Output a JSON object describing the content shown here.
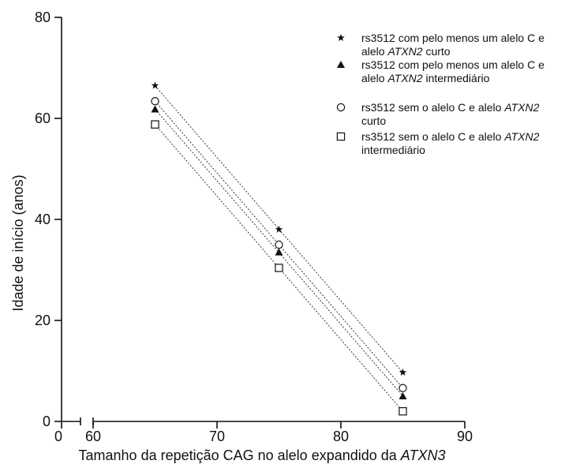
{
  "chart_data": {
    "type": "scatter",
    "xlabel": {
      "plain": "Tamanho da repetição CAG no alelo expandido da ",
      "italic": "ATXN3"
    },
    "ylabel": "Idade de início (anos)",
    "x_break": {
      "first_tick": "0",
      "resume_at": 60
    },
    "xlim": [
      60,
      90
    ],
    "ylim": [
      0,
      80
    ],
    "x_ticks": [
      60,
      70,
      80,
      90
    ],
    "y_ticks": [
      0,
      20,
      40,
      60,
      80
    ],
    "grid": false,
    "legend_position": "top-right",
    "fitted_lines": true,
    "series": [
      {
        "name": [
          [
            {
              "t": "rs3512 com pelo menos um alelo C e",
              "i": false
            }
          ],
          [
            {
              "t": "alelo ",
              "i": false
            },
            {
              "t": "ATXN2",
              "i": true
            },
            {
              "t": " curto",
              "i": false
            }
          ]
        ],
        "marker": "star",
        "x": [
          65,
          75,
          85
        ],
        "y": [
          66.5,
          38.0,
          9.7
        ]
      },
      {
        "name": [
          [
            {
              "t": "rs3512 com pelo menos um alelo C e",
              "i": false
            }
          ],
          [
            {
              "t": "alelo ",
              "i": false
            },
            {
              "t": "ATXN2",
              "i": true
            },
            {
              "t": " intermediário",
              "i": false
            }
          ]
        ],
        "marker": "triangle",
        "x": [
          65,
          75,
          85
        ],
        "y": [
          61.8,
          33.5,
          5.0
        ]
      },
      {
        "name": [
          [
            {
              "t": "rs3512 sem o alelo C e alelo ",
              "i": false
            },
            {
              "t": "ATXN2",
              "i": true
            }
          ],
          [
            {
              "t": "curto",
              "i": false
            }
          ]
        ],
        "marker": "circle",
        "x": [
          65,
          75,
          85
        ],
        "y": [
          63.4,
          35.0,
          6.6
        ]
      },
      {
        "name": [
          [
            {
              "t": "rs3512 sem o alelo C e alelo ",
              "i": false
            },
            {
              "t": "ATXN2",
              "i": true
            }
          ],
          [
            {
              "t": "intermediário",
              "i": false
            }
          ]
        ],
        "marker": "square",
        "x": [
          65,
          75,
          85
        ],
        "y": [
          58.8,
          30.4,
          2.0
        ]
      }
    ]
  }
}
